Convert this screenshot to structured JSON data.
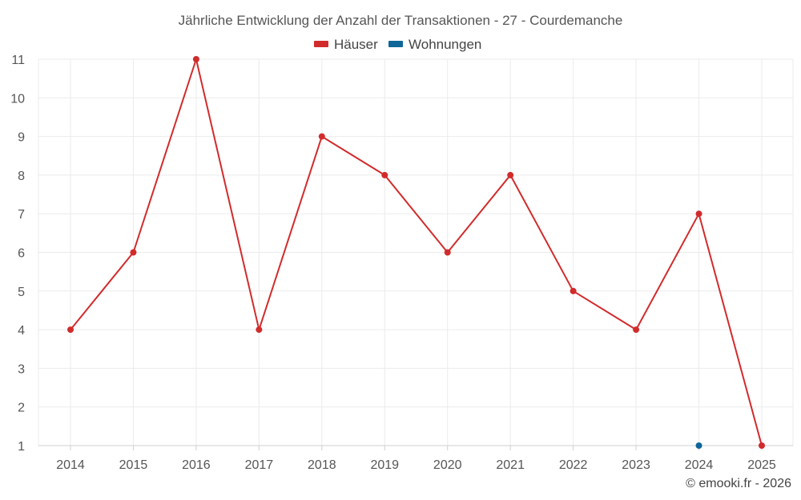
{
  "chart_data": {
    "type": "line",
    "title": "Jährliche Entwicklung der Anzahl der Transaktionen - 27 - Courdemanche",
    "categories": [
      "2014",
      "2015",
      "2016",
      "2017",
      "2018",
      "2019",
      "2020",
      "2021",
      "2022",
      "2023",
      "2024",
      "2025"
    ],
    "series": [
      {
        "name": "Häuser",
        "color": "#d22b2b",
        "values": [
          4,
          6,
          11,
          4,
          9,
          8,
          6,
          8,
          5,
          4,
          7,
          1
        ]
      },
      {
        "name": "Wohnungen",
        "color": "#0e6699",
        "values": [
          null,
          null,
          null,
          null,
          null,
          null,
          null,
          null,
          null,
          null,
          1,
          null
        ]
      }
    ],
    "ylim": [
      1,
      11
    ],
    "yticks": [
      "1",
      "2",
      "3",
      "4",
      "5",
      "6",
      "7",
      "8",
      "9",
      "10",
      "11"
    ],
    "grid": true,
    "legend_position": "top-center"
  },
  "credit": "© emooki.fr - 2026"
}
